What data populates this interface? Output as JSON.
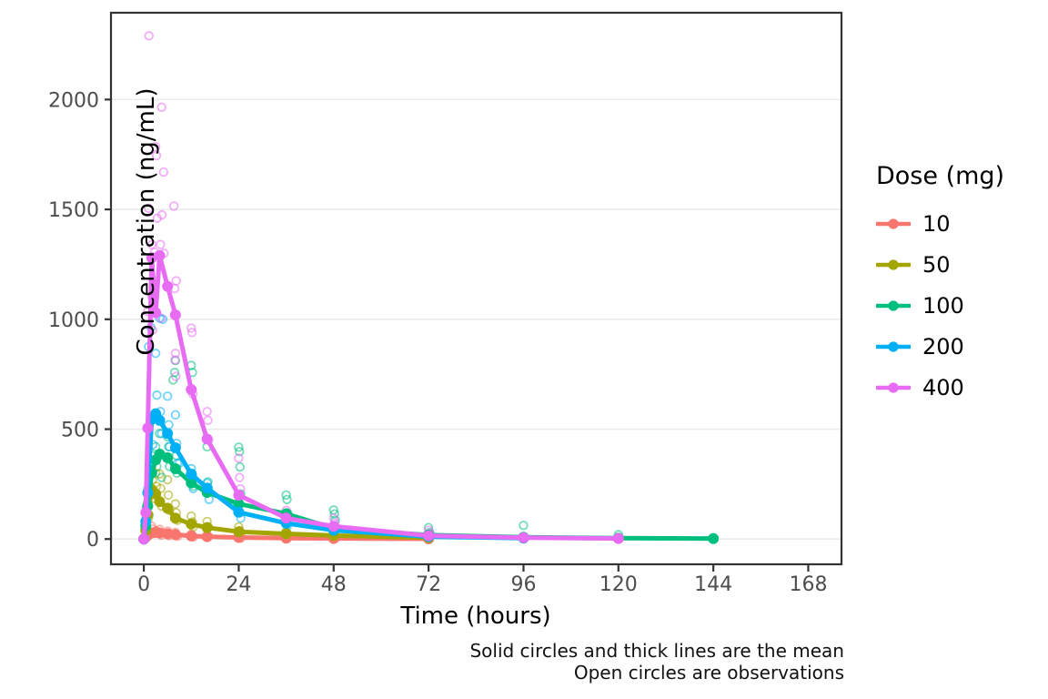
{
  "caption": {
    "line1": "Solid circles and thick lines are the mean",
    "line2": "Open circles are observations"
  },
  "chart_data": {
    "type": "scatter",
    "title": "",
    "xlabel": "Time (hours)",
    "ylabel": "Concentration (ng/mL)",
    "xlim": [
      -8.3,
      176.4
    ],
    "ylim": [
      -115,
      2395
    ],
    "xticks": [
      0,
      24,
      48,
      72,
      96,
      120,
      144,
      168
    ],
    "yticks": [
      0,
      500,
      1000,
      1500,
      2000
    ],
    "grid": "horizontal-major-only",
    "panel_background": "#ffffff",
    "grid_color": "#ebebeb",
    "border_color": "#333333",
    "tick_label_color": "#4d4d4d",
    "legend_position": "right",
    "legend_title": "Dose (mg)",
    "series": [
      {
        "name": "10",
        "color": "#F8766D",
        "mean": {
          "t": [
            0,
            0.5,
            1,
            2,
            3,
            4,
            6,
            8,
            12,
            16,
            24,
            36,
            48,
            72
          ],
          "c": [
            0,
            8,
            18,
            28,
            30,
            28,
            24,
            20,
            14,
            11,
            7,
            4,
            2.5,
            1
          ]
        },
        "observations": [
          [
            0.6,
            6
          ],
          [
            1.0,
            34
          ],
          [
            1.2,
            20
          ],
          [
            2.0,
            58
          ],
          [
            2.2,
            45
          ],
          [
            2.4,
            30
          ],
          [
            3.1,
            38
          ],
          [
            4.0,
            44
          ],
          [
            4.2,
            26
          ],
          [
            4.4,
            18
          ],
          [
            6.0,
            36
          ],
          [
            6.2,
            26
          ],
          [
            6.4,
            15
          ],
          [
            8.0,
            30
          ],
          [
            8.3,
            20
          ],
          [
            8.5,
            12
          ],
          [
            12.0,
            22
          ],
          [
            12.3,
            15
          ],
          [
            12.5,
            9
          ],
          [
            16.0,
            18
          ],
          [
            16.3,
            12
          ],
          [
            24.0,
            12
          ],
          [
            24.3,
            7
          ],
          [
            24.5,
            4
          ],
          [
            36.0,
            7
          ],
          [
            36.3,
            3
          ],
          [
            48.0,
            4
          ],
          [
            48.3,
            2
          ],
          [
            72.0,
            2
          ]
        ]
      },
      {
        "name": "50",
        "color": "#A3A500",
        "mean": {
          "t": [
            0,
            0.5,
            1,
            2,
            3,
            4,
            6,
            8,
            12,
            16,
            24,
            36,
            48,
            72
          ],
          "c": [
            0,
            40,
            110,
            225,
            205,
            170,
            140,
            95,
            68,
            52,
            33,
            24,
            16,
            6
          ]
        },
        "observations": [
          [
            0.6,
            55
          ],
          [
            1.0,
            150
          ],
          [
            1.2,
            95
          ],
          [
            2.0,
            330
          ],
          [
            2.2,
            270
          ],
          [
            2.5,
            185
          ],
          [
            3.0,
            300
          ],
          [
            3.2,
            240
          ],
          [
            4.0,
            296
          ],
          [
            4.3,
            230
          ],
          [
            4.5,
            150
          ],
          [
            6.0,
            270
          ],
          [
            6.2,
            200
          ],
          [
            6.5,
            130
          ],
          [
            8.0,
            160
          ],
          [
            8.2,
            120
          ],
          [
            8.5,
            85
          ],
          [
            12.0,
            104
          ],
          [
            12.3,
            78
          ],
          [
            12.5,
            55
          ],
          [
            16.0,
            80
          ],
          [
            16.3,
            55
          ],
          [
            24.0,
            55
          ],
          [
            24.3,
            38
          ],
          [
            24.5,
            25
          ],
          [
            36.0,
            34
          ],
          [
            36.3,
            22
          ],
          [
            48.0,
            26
          ],
          [
            48.3,
            15
          ],
          [
            72.0,
            9
          ]
        ]
      },
      {
        "name": "100",
        "color": "#00BF7D",
        "mean": {
          "t": [
            0,
            0.5,
            1,
            2,
            3,
            4,
            6,
            8,
            12,
            16,
            24,
            36,
            48,
            72,
            96,
            120,
            144
          ],
          "c": [
            0,
            60,
            150,
            300,
            360,
            385,
            370,
            320,
            255,
            212,
            160,
            115,
            48,
            18,
            8,
            4,
            2
          ]
        },
        "observations": [
          [
            0.6,
            70
          ],
          [
            1.0,
            170
          ],
          [
            1.3,
            110
          ],
          [
            2.0,
            380
          ],
          [
            2.2,
            300
          ],
          [
            2.5,
            210
          ],
          [
            3.0,
            420
          ],
          [
            3.3,
            330
          ],
          [
            4.0,
            480
          ],
          [
            4.2,
            390
          ],
          [
            4.5,
            280
          ],
          [
            6.0,
            465
          ],
          [
            6.3,
            420
          ],
          [
            6.5,
            330
          ],
          [
            7.4,
            724
          ],
          [
            7.8,
            758
          ],
          [
            8.0,
            812
          ],
          [
            8.2,
            380
          ],
          [
            8.4,
            300
          ],
          [
            12.0,
            790
          ],
          [
            12.3,
            758
          ],
          [
            12.1,
            300
          ],
          [
            12.5,
            240
          ],
          [
            16.0,
            420
          ],
          [
            16.2,
            260
          ],
          [
            16.4,
            215
          ],
          [
            24.0,
            418
          ],
          [
            24.2,
            398
          ],
          [
            24.3,
            328
          ],
          [
            24.5,
            205
          ],
          [
            36.0,
            200
          ],
          [
            36.2,
            180
          ],
          [
            36.4,
            118
          ],
          [
            48.0,
            132
          ],
          [
            48.2,
            114
          ],
          [
            48.4,
            86
          ],
          [
            72.0,
            52
          ],
          [
            72.3,
            30
          ],
          [
            96.0,
            62
          ],
          [
            120.0,
            20
          ]
        ]
      },
      {
        "name": "200",
        "color": "#00B0F6",
        "mean": {
          "t": [
            0,
            0.5,
            1,
            2,
            3,
            4,
            6,
            8,
            12,
            16,
            24,
            36,
            48,
            72,
            96
          ],
          "c": [
            0,
            80,
            210,
            545,
            570,
            540,
            480,
            415,
            295,
            232,
            122,
            72,
            40,
            11,
            4
          ]
        },
        "observations": [
          [
            0.6,
            95
          ],
          [
            1.0,
            230
          ],
          [
            1.2,
            875
          ],
          [
            1.8,
            962
          ],
          [
            2.0,
            540
          ],
          [
            2.3,
            430
          ],
          [
            3.0,
            845
          ],
          [
            3.3,
            655
          ],
          [
            4.0,
            1005
          ],
          [
            4.2,
            580
          ],
          [
            4.5,
            480
          ],
          [
            4.8,
            1000
          ],
          [
            6.0,
            650
          ],
          [
            6.3,
            520
          ],
          [
            6.5,
            420
          ],
          [
            8.0,
            565
          ],
          [
            8.3,
            435
          ],
          [
            8.5,
            345
          ],
          [
            9.0,
            345
          ],
          [
            12.0,
            320
          ],
          [
            12.3,
            290
          ],
          [
            12.5,
            230
          ],
          [
            16.0,
            255
          ],
          [
            16.3,
            230
          ],
          [
            16.5,
            180
          ],
          [
            24.0,
            160
          ],
          [
            24.3,
            120
          ],
          [
            24.5,
            95
          ],
          [
            36.0,
            85
          ],
          [
            36.3,
            60
          ],
          [
            48.0,
            52
          ],
          [
            48.3,
            35
          ],
          [
            72.0,
            16
          ],
          [
            96.0,
            6
          ]
        ]
      },
      {
        "name": "400",
        "color": "#E76BF3",
        "mean": {
          "t": [
            0,
            0.5,
            1,
            2,
            3,
            4,
            6,
            8,
            12,
            16,
            24,
            36,
            48,
            72,
            96,
            120
          ],
          "c": [
            0,
            120,
            505,
            1280,
            1030,
            1290,
            1150,
            1020,
            680,
            455,
            200,
            95,
            58,
            15,
            6,
            2.5
          ]
        },
        "observations": [
          [
            1.3,
            2290
          ],
          [
            4.5,
            1965
          ],
          [
            3.0,
            1785
          ],
          [
            3.2,
            1745
          ],
          [
            5.0,
            1670
          ],
          [
            1.2,
            1505
          ],
          [
            7.6,
            1515
          ],
          [
            4.6,
            1475
          ],
          [
            3.4,
            1460
          ],
          [
            2.0,
            1340
          ],
          [
            4.2,
            1340
          ],
          [
            2.7,
            1305
          ],
          [
            5.1,
            1300
          ],
          [
            8.2,
            1175
          ],
          [
            7.8,
            1140
          ],
          [
            2.1,
            1100
          ],
          [
            1.0,
            1035
          ],
          [
            4.4,
            1005
          ],
          [
            2.2,
            950
          ],
          [
            12.0,
            960
          ],
          [
            12.2,
            940
          ],
          [
            8.0,
            845
          ],
          [
            7.9,
            815
          ],
          [
            8.1,
            740
          ],
          [
            12.4,
            660
          ],
          [
            16.0,
            580
          ],
          [
            16.2,
            540
          ],
          [
            16.4,
            450
          ],
          [
            24.0,
            368
          ],
          [
            24.2,
            280
          ],
          [
            24.4,
            228
          ],
          [
            36.0,
            130
          ],
          [
            36.3,
            92
          ],
          [
            48.0,
            95
          ],
          [
            48.3,
            72
          ],
          [
            0.6,
            140
          ],
          [
            72.0,
            40
          ],
          [
            72.3,
            25
          ],
          [
            96.0,
            10
          ],
          [
            120.0,
            5
          ]
        ]
      }
    ]
  }
}
